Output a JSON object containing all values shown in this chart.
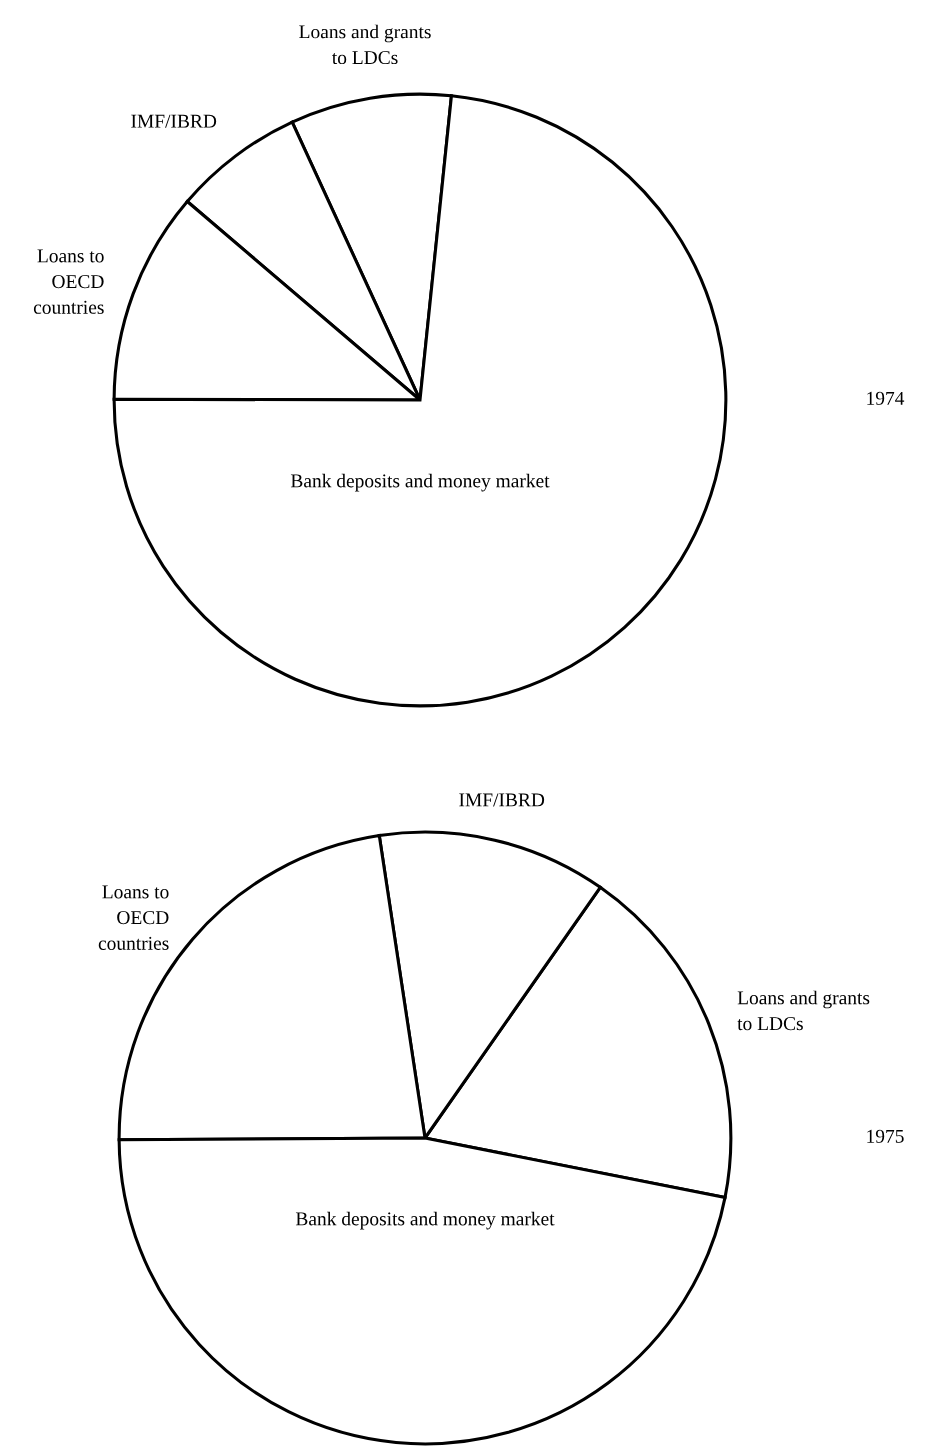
{
  "chart_data": [
    {
      "type": "pie",
      "title": "1974",
      "categories": [
        "Loans and grants\nto LDCs",
        "IMF/IBRD",
        "Loans to\nOECD\ncountries",
        "Bank deposits and money market"
      ],
      "values": [
        8.5,
        6.9,
        11.2,
        73.4
      ],
      "colors": [
        "#ffffff",
        "#ffffff",
        "#ffffff",
        "#ffffff"
      ]
    },
    {
      "type": "pie",
      "title": "1975",
      "categories": [
        "Loans and grants\nto LDCs",
        "IMF/IBRD",
        "Loans to\nOECD\ncountries",
        "Bank deposits and money market"
      ],
      "values": [
        18.4,
        12.1,
        22.7,
        46.8
      ],
      "colors": [
        "#ffffff",
        "#ffffff",
        "#ffffff",
        "#ffffff"
      ]
    }
  ]
}
